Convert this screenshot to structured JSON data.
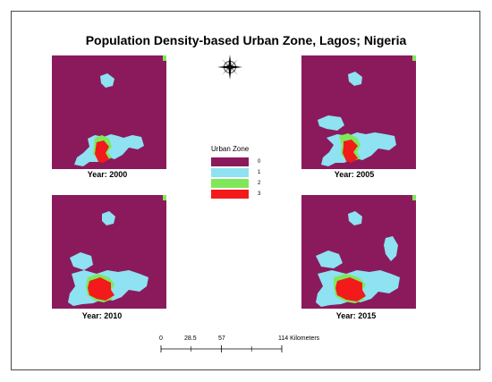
{
  "title": "Population Density-based Urban Zone, Lagos; Nigeria",
  "colors": {
    "zone0": "#8b1a5c",
    "zone1": "#8ee2f2",
    "zone2": "#7fe85a",
    "zone3": "#f21a1a"
  },
  "icons": {
    "north_arrow": "compass-rose-icon"
  },
  "maps": [
    {
      "year_label": "Year: 2000",
      "zones_present": [
        0,
        1,
        2,
        3
      ]
    },
    {
      "year_label": "Year: 2005",
      "zones_present": [
        0,
        1,
        2,
        3
      ]
    },
    {
      "year_label": "Year: 2010",
      "zones_present": [
        0,
        1,
        2,
        3
      ]
    },
    {
      "year_label": "Year: 2015",
      "zones_present": [
        0,
        1,
        2,
        3
      ]
    }
  ],
  "legend": {
    "title": "Urban Zone",
    "items": [
      {
        "label": "0",
        "zone": 0
      },
      {
        "label": "1",
        "zone": 1
      },
      {
        "label": "2",
        "zone": 2
      },
      {
        "label": "3",
        "zone": 3
      }
    ]
  },
  "scale": {
    "ticks": [
      "0",
      "28.5",
      "57",
      "114 Kilometers"
    ]
  }
}
